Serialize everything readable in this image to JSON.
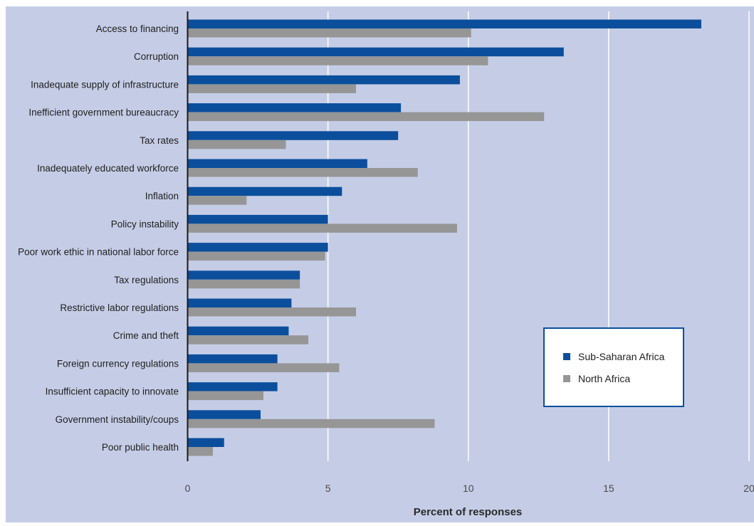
{
  "chart_data": {
    "type": "bar",
    "orientation": "horizontal",
    "categories": [
      "Access to financing",
      "Corruption",
      "Inadequate supply of infrastructure",
      "Inefficient government bureaucracy",
      "Tax rates",
      "Inadequately educated workforce",
      "Inflation",
      "Policy instability",
      "Poor work ethic in national labor force",
      "Tax regulations",
      "Restrictive labor regulations",
      "Crime and theft",
      "Foreign currency regulations",
      "Insufficient capacity to innovate",
      "Government instability/coups",
      "Poor public health"
    ],
    "series": [
      {
        "name": "Sub-Saharan Africa",
        "color": "#0b4f9c",
        "values": [
          18.3,
          13.4,
          9.7,
          7.6,
          7.5,
          6.4,
          5.5,
          5.0,
          5.0,
          4.0,
          3.7,
          3.6,
          3.2,
          3.2,
          2.6,
          1.3
        ]
      },
      {
        "name": "North Africa",
        "color": "#969696",
        "values": [
          10.1,
          10.7,
          6.0,
          12.7,
          3.5,
          8.2,
          2.1,
          9.6,
          4.9,
          4.0,
          6.0,
          4.3,
          5.4,
          2.7,
          8.8,
          0.9
        ]
      }
    ],
    "xlabel": "Percent of responses",
    "ylabel": "",
    "xlim": [
      0,
      20
    ],
    "xticks": [
      0,
      5,
      10,
      15,
      20
    ],
    "grid": true,
    "legend_position": "bottom-right",
    "background_color": "#c5cde6"
  }
}
